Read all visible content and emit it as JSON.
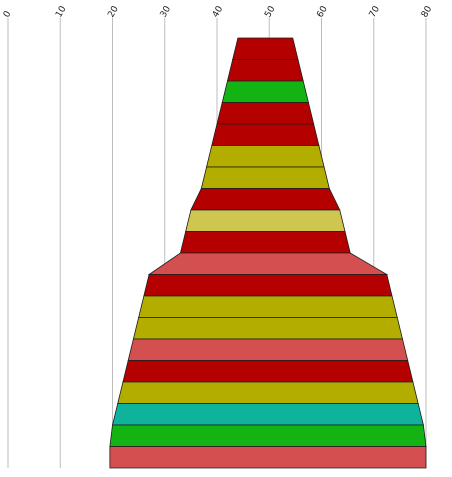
{
  "chart_data": {
    "type": "bar",
    "orientation": "horizontal-centered",
    "title": "",
    "xlabel": "",
    "ylabel": "",
    "grid": true,
    "xlim": [
      0,
      80
    ],
    "x_ticks": [
      "0",
      "10",
      "20",
      "30",
      "40",
      "50",
      "60",
      "70",
      "80"
    ],
    "bands": [
      {
        "left": 44.0,
        "right": 54.5,
        "color": "#b50000"
      },
      {
        "left": 43.0,
        "right": 55.5,
        "color": "#b50000"
      },
      {
        "left": 42.0,
        "right": 56.5,
        "color": "#12b312"
      },
      {
        "left": 41.0,
        "right": 57.5,
        "color": "#b50000"
      },
      {
        "left": 40.0,
        "right": 58.5,
        "color": "#b50000"
      },
      {
        "left": 39.0,
        "right": 59.5,
        "color": "#b3ad00"
      },
      {
        "left": 38.0,
        "right": 60.5,
        "color": "#b3ad00"
      },
      {
        "left": 37.0,
        "right": 61.5,
        "color": "#b50000"
      },
      {
        "left": 35.0,
        "right": 63.5,
        "color": "#cfc64f"
      },
      {
        "left": 34.0,
        "right": 64.5,
        "color": "#b50000"
      },
      {
        "left": 33.0,
        "right": 65.5,
        "color": "#d45050"
      },
      {
        "left": 27.0,
        "right": 72.5,
        "color": "#b50000"
      },
      {
        "left": 26.0,
        "right": 73.5,
        "color": "#b3ad00"
      },
      {
        "left": 25.0,
        "right": 74.5,
        "color": "#b3ad00"
      },
      {
        "left": 24.0,
        "right": 75.5,
        "color": "#d45050"
      },
      {
        "left": 23.0,
        "right": 76.5,
        "color": "#b50000"
      },
      {
        "left": 22.0,
        "right": 77.5,
        "color": "#b3ad00"
      },
      {
        "left": 21.0,
        "right": 78.5,
        "color": "#0fb39c"
      },
      {
        "left": 20.0,
        "right": 79.5,
        "color": "#12b312"
      },
      {
        "left": 19.5,
        "right": 80.0,
        "color": "#d45050"
      }
    ]
  }
}
